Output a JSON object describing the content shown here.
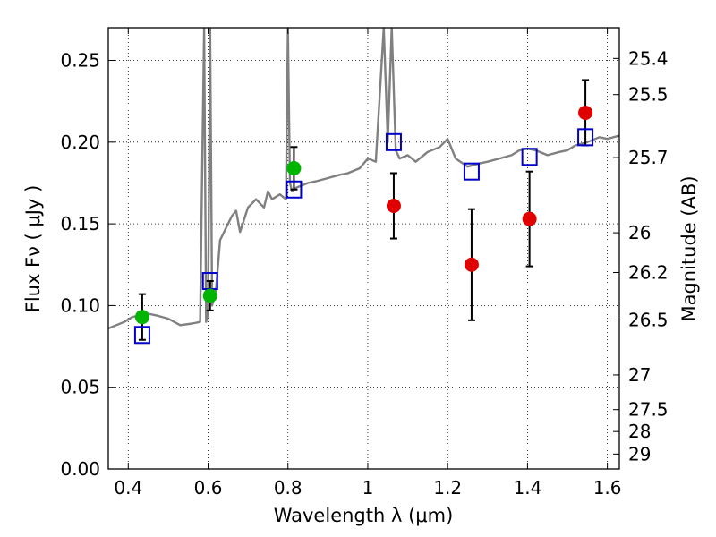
{
  "chart_data": {
    "type": "scatter",
    "xlabel": "Wavelength  λ (μm)",
    "ylabel": "Flux  Fν  ( μJy )",
    "y2label": "Magnitude (AB)",
    "xlim": [
      0.35,
      1.63
    ],
    "ylim": [
      0.0,
      0.27
    ],
    "grid": true,
    "x_ticks": [
      0.4,
      0.6,
      0.8,
      1.0,
      1.2,
      1.4,
      1.6
    ],
    "x_tick_labels": [
      "0.4",
      "0.6",
      "0.8",
      "1",
      "1.2",
      "1.4",
      "1.6"
    ],
    "y_ticks": [
      0.0,
      0.05,
      0.1,
      0.15,
      0.2,
      0.25
    ],
    "y_tick_labels": [
      "0.00",
      "0.05",
      "0.10",
      "0.15",
      "0.20",
      "0.25"
    ],
    "magnitude_ticks": [
      "25.4",
      "25.5",
      "25.7",
      "26",
      "26.2",
      "26.5",
      "27",
      "27.5",
      "28",
      "29"
    ],
    "series": [
      {
        "kind": "spectrum",
        "color": "#808080",
        "x": [
          0.35,
          0.37,
          0.39,
          0.41,
          0.43,
          0.45,
          0.47,
          0.5,
          0.53,
          0.56,
          0.58,
          0.59,
          0.595,
          0.6,
          0.605,
          0.61,
          0.62,
          0.63,
          0.65,
          0.66,
          0.67,
          0.68,
          0.7,
          0.72,
          0.74,
          0.75,
          0.76,
          0.78,
          0.795,
          0.8,
          0.805,
          0.81,
          0.82,
          0.85,
          0.87,
          0.9,
          0.93,
          0.95,
          0.98,
          1.0,
          1.02,
          1.04,
          1.05,
          1.06,
          1.07,
          1.08,
          1.1,
          1.12,
          1.15,
          1.18,
          1.2,
          1.22,
          1.25,
          1.28,
          1.3,
          1.33,
          1.36,
          1.38,
          1.4,
          1.42,
          1.45,
          1.48,
          1.5,
          1.52,
          1.55,
          1.58,
          1.6,
          1.63
        ],
        "y": [
          0.086,
          0.088,
          0.09,
          0.093,
          0.094,
          0.095,
          0.094,
          0.092,
          0.088,
          0.089,
          0.09,
          0.27,
          0.09,
          0.095,
          0.27,
          0.1,
          0.11,
          0.14,
          0.15,
          0.155,
          0.158,
          0.145,
          0.16,
          0.165,
          0.16,
          0.17,
          0.165,
          0.168,
          0.165,
          0.27,
          0.175,
          0.17,
          0.172,
          0.175,
          0.176,
          0.178,
          0.18,
          0.181,
          0.184,
          0.19,
          0.188,
          0.27,
          0.2,
          0.27,
          0.195,
          0.19,
          0.192,
          0.188,
          0.194,
          0.197,
          0.202,
          0.19,
          0.185,
          0.187,
          0.188,
          0.19,
          0.192,
          0.195,
          0.196,
          0.195,
          0.192,
          0.194,
          0.195,
          0.198,
          0.2,
          0.203,
          0.202,
          0.204
        ]
      },
      {
        "kind": "model-squares",
        "color": "#0000cc",
        "x": [
          0.435,
          0.605,
          0.815,
          1.065,
          1.26,
          1.405,
          1.545
        ],
        "y": [
          0.082,
          0.115,
          0.171,
          0.2,
          0.182,
          0.191,
          0.203
        ]
      },
      {
        "kind": "points-green",
        "color": "#00b400",
        "x": [
          0.435,
          0.605,
          0.815
        ],
        "y": [
          0.093,
          0.106,
          0.184
        ],
        "err": [
          0.014,
          0.009,
          0.013
        ]
      },
      {
        "kind": "points-red",
        "color": "#e00000",
        "x": [
          1.065,
          1.26,
          1.405,
          1.545
        ],
        "y": [
          0.161,
          0.125,
          0.153,
          0.218
        ],
        "err": [
          0.02,
          0.034,
          0.029,
          0.02
        ]
      }
    ]
  }
}
